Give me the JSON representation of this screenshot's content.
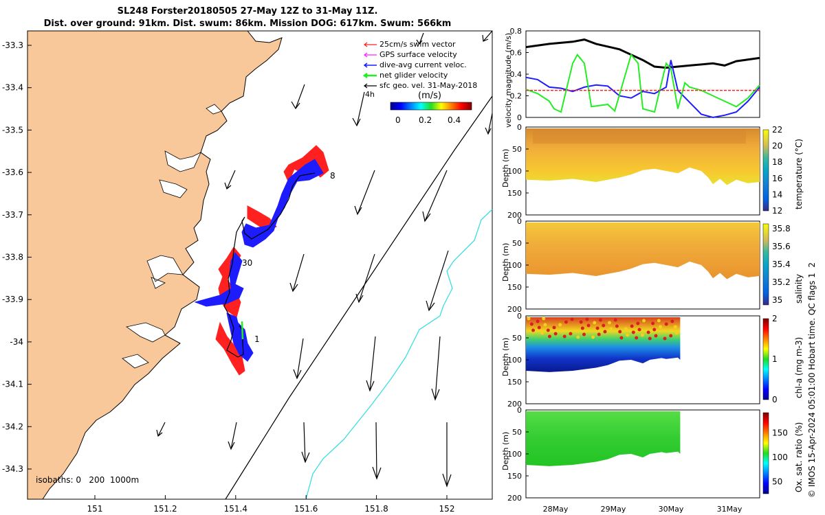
{
  "title_line1": "SL248 Forster20180505 27-May 12Z to 31-May 11Z.",
  "title_line2": "Dist. over ground: 91km. Dist. swum: 86km. Mission DOG: 617km. Swum: 566km",
  "footer": "© IMOS 15-Apr-2024 05:01:00 Hobart time. QC flags 1  2",
  "colors": {
    "land": "#f9c89a",
    "blue": "#1c1cff",
    "green": "#22ee22",
    "red": "#ff2020",
    "cyan": "#3adede"
  },
  "chart_data": [
    {
      "type": "map",
      "lon_ticks": [
        "151",
        "151.2",
        "151.4",
        "151.6",
        "151.8",
        "152"
      ],
      "lat_ticks": [
        "-33.3",
        "-33.4",
        "-33.5",
        "-33.6",
        "-33.7",
        "-33.8",
        "-33.9",
        "-34",
        "-34.1",
        "-34.2",
        "-34.3"
      ],
      "legend": [
        "25cm/s swim vector",
        "GPS surface velocity",
        "dive-avg current veloc.",
        "net glider velocity",
        "sfc geo. vel. 31-May-2018"
      ],
      "colorbar_label": "(m/s)",
      "colorbar_ticks": [
        "0",
        "0.2",
        "0.4"
      ],
      "scale_label": "4h",
      "track_labels": [
        "8",
        "30",
        "1"
      ],
      "isobaths_label": "isobaths: 0   200  1000m"
    },
    {
      "type": "line",
      "ylabel": "velocity magnitude (m/s)",
      "ylim": [
        0,
        0.8
      ],
      "yticks": [
        "0",
        "0.2",
        "0.4",
        "0.6",
        "0.8"
      ],
      "series": [
        {
          "name": "net glider velocity",
          "color": "black",
          "x": [
            0,
            0.1,
            0.2,
            0.25,
            0.3,
            0.4,
            0.45,
            0.5,
            0.55,
            0.6,
            0.7,
            0.8,
            0.85,
            0.9,
            1.0
          ],
          "values": [
            0.65,
            0.68,
            0.7,
            0.72,
            0.68,
            0.63,
            0.58,
            0.53,
            0.47,
            0.46,
            0.48,
            0.5,
            0.48,
            0.52,
            0.55
          ]
        },
        {
          "name": "dive-avg current",
          "color": "blue",
          "x": [
            0,
            0.05,
            0.1,
            0.15,
            0.2,
            0.25,
            0.3,
            0.35,
            0.4,
            0.45,
            0.5,
            0.55,
            0.6,
            0.62,
            0.65,
            0.7,
            0.75,
            0.8,
            0.85,
            0.9,
            0.95,
            1.0
          ],
          "values": [
            0.37,
            0.35,
            0.28,
            0.27,
            0.24,
            0.28,
            0.3,
            0.29,
            0.2,
            0.18,
            0.24,
            0.22,
            0.28,
            0.53,
            0.25,
            0.14,
            0.03,
            0.0,
            0.02,
            0.05,
            0.15,
            0.28
          ]
        },
        {
          "name": "swim speed",
          "color": "green",
          "x": [
            0,
            0.05,
            0.1,
            0.12,
            0.15,
            0.2,
            0.22,
            0.25,
            0.28,
            0.35,
            0.38,
            0.45,
            0.48,
            0.5,
            0.55,
            0.6,
            0.62,
            0.65,
            0.68,
            0.7,
            0.75,
            0.8,
            0.85,
            0.9,
            0.95,
            1.0
          ],
          "values": [
            0.26,
            0.22,
            0.15,
            0.08,
            0.05,
            0.5,
            0.58,
            0.5,
            0.1,
            0.12,
            0.06,
            0.58,
            0.5,
            0.08,
            0.05,
            0.5,
            0.45,
            0.08,
            0.32,
            0.28,
            0.25,
            0.2,
            0.15,
            0.1,
            0.18,
            0.3
          ]
        },
        {
          "name": "25 cm/s reference",
          "color": "red",
          "x": [
            0,
            1.0
          ],
          "values": [
            0.25,
            0.25
          ]
        }
      ]
    },
    {
      "type": "heatmap",
      "ylabel": "Depth (m)",
      "ylim": [
        0,
        200
      ],
      "yticks": [
        "0",
        "50",
        "100",
        "150",
        "200"
      ],
      "colorbar_label": "temperature (°C)",
      "colorbar_ticks": [
        "12",
        "14",
        "16",
        "18",
        "20",
        "22"
      ],
      "colormap": "parula"
    },
    {
      "type": "heatmap",
      "ylabel": "Depth (m)",
      "ylim": [
        0,
        200
      ],
      "yticks": [
        "0",
        "50",
        "100",
        "150",
        "200"
      ],
      "colorbar_label": "salinity",
      "colorbar_ticks": [
        "35",
        "35.2",
        "35.4",
        "35.6",
        "35.8"
      ],
      "colormap": "parula"
    },
    {
      "type": "heatmap",
      "ylabel": "Depth (m)",
      "ylim": [
        0,
        200
      ],
      "yticks": [
        "0",
        "50",
        "100",
        "150",
        "200"
      ],
      "colorbar_label": "chl-a (mg m-3)",
      "colorbar_ticks": [
        "0",
        "1",
        "2"
      ],
      "colormap": "jet"
    },
    {
      "type": "heatmap",
      "ylabel": "Depth (m)",
      "ylim": [
        0,
        200
      ],
      "yticks": [
        "0",
        "50",
        "100",
        "150",
        "200"
      ],
      "xticks": [
        "28May",
        "29May",
        "30May",
        "31May"
      ],
      "colorbar_label": "Ox. sat. ratio (%)",
      "colorbar_ticks": [
        "50",
        "100",
        "150"
      ],
      "colormap": "jet"
    }
  ]
}
